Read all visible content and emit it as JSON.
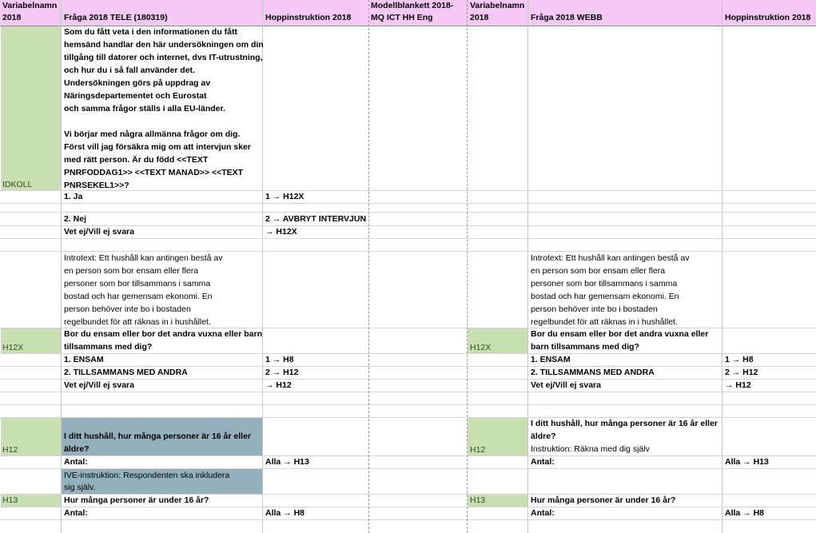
{
  "header": {
    "col1": [
      "Variabelnamn",
      "2018"
    ],
    "col2": "Fråga 2018 TELE (180319)",
    "col3": "Hoppinstruktion 2018",
    "col4": [
      "Modellblankett 2018-",
      "MQ ICT HH Eng"
    ],
    "col5": [
      "Variabelnamn",
      "2018"
    ],
    "col6": "Fråga 2018 WEBB",
    "col7": "Hoppinstruktion 2018"
  },
  "idkoll": {
    "var": "IDKOLL",
    "question": [
      "Som du fått veta i den informationen du fått",
      "hemsänd handlar den här undersökningen om din",
      "tillgång till datorer och internet, dvs IT-utrustning,",
      "och hur du i så fall använder det.",
      "Undersökningen görs på uppdrag av",
      "Näringsdepartementet och Eurostat",
      "och samma frågor ställs i alla EU-länder.",
      "",
      "Vi börjar med några allmänna frågor om dig.",
      "Först vill jag försäkra mig om att intervjun sker",
      "med rätt person. Är du född <<TEXT",
      "PNRFODDAG1>> <<TEXT MANAD>> <<TEXT",
      "PNRSEKEL1>>?"
    ],
    "answers": [
      {
        "label": "1. Ja",
        "jump": "1 → H12X"
      },
      {
        "label": "2. Nej",
        "jump": "2 → AVBRYT INTERVJUN"
      },
      {
        "label": "Vet ej/Vill ej svara",
        "jump": "→ H12X"
      }
    ]
  },
  "intro": {
    "tele": [
      "Introtext: Ett hushåll kan antingen bestå av",
      "en person som bor ensam eller flera",
      "personer som bor tillsammans i samma",
      "bostad och har gemensam ekonomi. En",
      "person behöver inte bo i bostaden",
      "regelbundet för att räknas in i hushållet."
    ],
    "webb": [
      "Introtext: Ett hushåll kan antingen bestå av",
      "en person som bor ensam eller flera",
      "personer som bor tillsammans i samma",
      "bostad och har gemensam ekonomi. En",
      "person behöver inte bo i bostaden",
      "regelbundet för att räknas in i hushållet."
    ]
  },
  "h12x": {
    "var": "H12X",
    "question": [
      "Bor du ensam eller bor det andra vuxna eller barn",
      "tillsammans med dig?"
    ],
    "question_webb": [
      "Bor du ensam eller bor det andra vuxna eller",
      "barn tillsammans med dig?"
    ],
    "answers": [
      {
        "label": "1. ENSAM",
        "jump": "1 → H8"
      },
      {
        "label": "2. TILLSAMMANS MED ANDRA",
        "jump": "2 → H12"
      },
      {
        "label": "Vet ej/Vill ej svara",
        "jump": "→ H12"
      }
    ]
  },
  "h12": {
    "var": "H12",
    "question": [
      "I ditt hushåll, hur många personer är 16 år eller",
      "äldre?"
    ],
    "question_webb": [
      "I ditt hushåll, hur många personer är 16 år eller",
      "äldre?"
    ],
    "webb_instruction": "Instruktion: Räkna med dig själv",
    "antal": "Antal:",
    "jump": "Alla → H13",
    "ive": [
      "IVE-instruktion: Respondenten ska inkludera",
      "sig själv."
    ]
  },
  "h13": {
    "var": "H13",
    "question": "Hur många personer är under 16 år?",
    "antal": "Antal:",
    "jump": "Alla → H8"
  }
}
